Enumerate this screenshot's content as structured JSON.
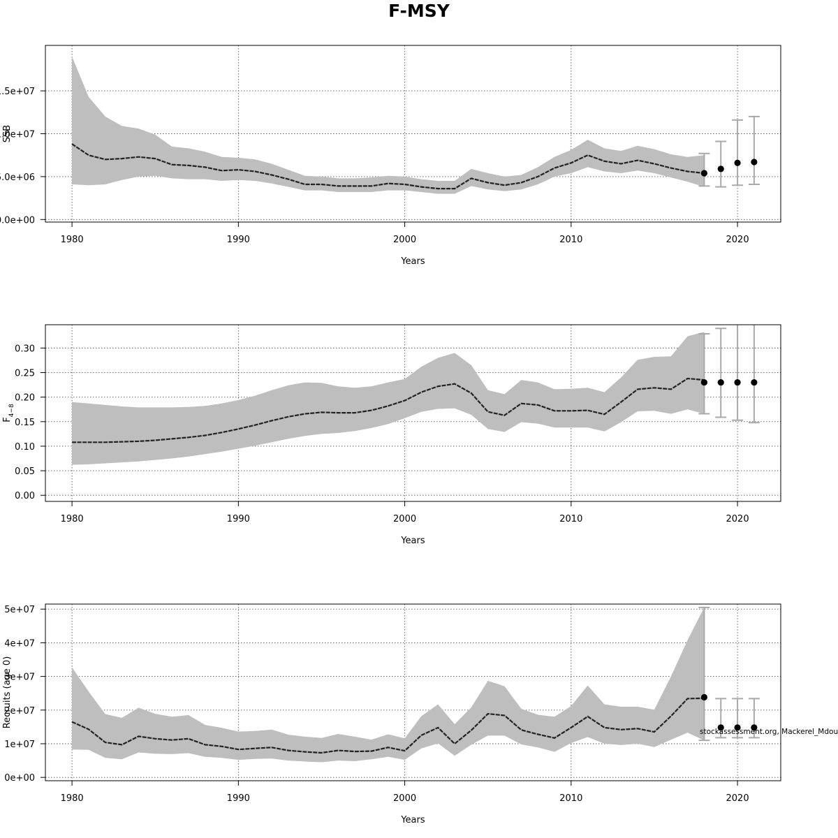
{
  "title": "F-MSY",
  "source_note": "stockassessment.org, Mackerel_Mdouble",
  "colors": {
    "band": "#bebebe",
    "line": "#222222",
    "errorbar": "#a9a9a9",
    "point": "#000000",
    "grid": "#555555"
  },
  "chart_data": [
    {
      "type": "line",
      "title": "",
      "xlabel": "Years",
      "ylabel": "SSB",
      "grid": true,
      "xlim": [
        1978.4,
        2022.6
      ],
      "ylim": [
        -300000,
        20300000
      ],
      "xticks": [
        1980,
        1990,
        2000,
        2010,
        2020
      ],
      "xtick_labels": [
        "1980",
        "1990",
        "2000",
        "2010",
        "2020"
      ],
      "yticks": [
        0,
        5000000,
        10000000,
        15000000
      ],
      "ytick_labels": [
        "0.0e+00",
        "5.0e+06",
        "1.0e+07",
        "1.5e+07"
      ],
      "x": [
        1980,
        1981,
        1982,
        1983,
        1984,
        1985,
        1986,
        1987,
        1988,
        1989,
        1990,
        1991,
        1992,
        1993,
        1994,
        1995,
        1996,
        1997,
        1998,
        1999,
        2000,
        2001,
        2002,
        2003,
        2004,
        2005,
        2006,
        2007,
        2008,
        2009,
        2010,
        2011,
        2012,
        2013,
        2014,
        2015,
        2016,
        2017,
        2018
      ],
      "estimate": [
        8800000,
        7500000,
        7000000,
        7100000,
        7300000,
        7100000,
        6400000,
        6300000,
        6100000,
        5700000,
        5800000,
        5600000,
        5200000,
        4700000,
        4100000,
        4100000,
        3900000,
        3900000,
        3900000,
        4200000,
        4100000,
        3800000,
        3600000,
        3600000,
        4800000,
        4300000,
        4000000,
        4300000,
        5000000,
        6000000,
        6600000,
        7500000,
        6800000,
        6500000,
        6900000,
        6500000,
        6000000,
        5600000,
        5400000
      ],
      "upper": [
        19000000,
        14300000,
        12000000,
        10900000,
        10600000,
        9900000,
        8500000,
        8300000,
        7900000,
        7300000,
        7200000,
        7000000,
        6500000,
        5800000,
        5100000,
        5000000,
        4800000,
        4800000,
        4900000,
        5100000,
        5000000,
        4700000,
        4500000,
        4500000,
        5900000,
        5400000,
        5000000,
        5200000,
        6100000,
        7300000,
        8100000,
        9300000,
        8300000,
        8000000,
        8600000,
        8200000,
        7600000,
        7300000,
        7500000
      ],
      "lower": [
        4100000,
        4000000,
        4100000,
        4600000,
        5000000,
        5100000,
        4800000,
        4700000,
        4700000,
        4500000,
        4600000,
        4500000,
        4200000,
        3800000,
        3400000,
        3400000,
        3200000,
        3200000,
        3200000,
        3400000,
        3400000,
        3200000,
        3000000,
        3000000,
        3900000,
        3500000,
        3300000,
        3500000,
        4100000,
        5000000,
        5400000,
        6100000,
        5600000,
        5400000,
        5700000,
        5400000,
        4900000,
        4400000,
        3800000
      ],
      "forecast": [
        {
          "x": 2018,
          "value": 5400000,
          "low": 3900000,
          "high": 7700000
        },
        {
          "x": 2019,
          "value": 5900000,
          "low": 3800000,
          "high": 9100000
        },
        {
          "x": 2020,
          "value": 6600000,
          "low": 4000000,
          "high": 11600000
        },
        {
          "x": 2021,
          "value": 6700000,
          "low": 4100000,
          "high": 12000000
        }
      ]
    },
    {
      "type": "line",
      "title": "",
      "xlabel": "Years",
      "ylabel": "F",
      "ylabel_subscript": "4−8",
      "grid": true,
      "xlim": [
        1978.4,
        2022.6
      ],
      "ylim": [
        -0.0125,
        0.3475
      ],
      "xticks": [
        1980,
        1990,
        2000,
        2010,
        2020
      ],
      "xtick_labels": [
        "1980",
        "1990",
        "2000",
        "2010",
        "2020"
      ],
      "yticks": [
        0,
        0.05,
        0.1,
        0.15,
        0.2,
        0.25,
        0.3
      ],
      "ytick_labels": [
        "0.00",
        "0.05",
        "0.10",
        "0.15",
        "0.20",
        "0.25",
        "0.30"
      ],
      "x": [
        1980,
        1981,
        1982,
        1983,
        1984,
        1985,
        1986,
        1987,
        1988,
        1989,
        1990,
        1991,
        1992,
        1993,
        1994,
        1995,
        1996,
        1997,
        1998,
        1999,
        2000,
        2001,
        2002,
        2003,
        2004,
        2005,
        2006,
        2007,
        2008,
        2009,
        2010,
        2011,
        2012,
        2013,
        2014,
        2015,
        2016,
        2017,
        2018
      ],
      "estimate": [
        0.108,
        0.108,
        0.108,
        0.109,
        0.11,
        0.112,
        0.115,
        0.118,
        0.122,
        0.128,
        0.135,
        0.143,
        0.152,
        0.16,
        0.166,
        0.169,
        0.168,
        0.168,
        0.173,
        0.182,
        0.193,
        0.21,
        0.222,
        0.227,
        0.208,
        0.17,
        0.163,
        0.187,
        0.184,
        0.172,
        0.172,
        0.173,
        0.165,
        0.19,
        0.216,
        0.219,
        0.216,
        0.238,
        0.235
      ],
      "upper": [
        0.19,
        0.187,
        0.184,
        0.181,
        0.179,
        0.179,
        0.179,
        0.18,
        0.182,
        0.187,
        0.194,
        0.203,
        0.214,
        0.224,
        0.23,
        0.229,
        0.222,
        0.219,
        0.222,
        0.23,
        0.237,
        0.262,
        0.28,
        0.29,
        0.265,
        0.214,
        0.206,
        0.235,
        0.23,
        0.216,
        0.217,
        0.219,
        0.21,
        0.24,
        0.276,
        0.282,
        0.283,
        0.324,
        0.333
      ],
      "lower": [
        0.062,
        0.063,
        0.065,
        0.067,
        0.069,
        0.072,
        0.075,
        0.079,
        0.084,
        0.089,
        0.095,
        0.101,
        0.108,
        0.115,
        0.121,
        0.125,
        0.127,
        0.131,
        0.137,
        0.145,
        0.157,
        0.17,
        0.176,
        0.177,
        0.164,
        0.135,
        0.129,
        0.149,
        0.146,
        0.138,
        0.138,
        0.138,
        0.13,
        0.149,
        0.171,
        0.172,
        0.166,
        0.175,
        0.166
      ],
      "forecast": [
        {
          "x": 2018,
          "value": 0.23,
          "low": 0.166,
          "high": 0.329
        },
        {
          "x": 2019,
          "value": 0.23,
          "low": 0.159,
          "high": 0.34
        },
        {
          "x": 2020,
          "value": 0.23,
          "low": 0.153,
          "high": 0.358
        },
        {
          "x": 2021,
          "value": 0.23,
          "low": 0.148,
          "high": 0.36
        }
      ]
    },
    {
      "type": "line",
      "title": "",
      "xlabel": "Years",
      "ylabel": "Recruits (age 0)",
      "grid": true,
      "xlim": [
        1978.4,
        2022.6
      ],
      "ylim": [
        -1000000,
        51500000
      ],
      "xticks": [
        1980,
        1990,
        2000,
        2010,
        2020
      ],
      "xtick_labels": [
        "1980",
        "1990",
        "2000",
        "2010",
        "2020"
      ],
      "yticks": [
        0,
        10000000,
        20000000,
        30000000,
        40000000,
        50000000
      ],
      "ytick_labels": [
        "0e+00",
        "1e+07",
        "2e+07",
        "3e+07",
        "4e+07",
        "5e+07"
      ],
      "x": [
        1980,
        1981,
        1982,
        1983,
        1984,
        1985,
        1986,
        1987,
        1988,
        1989,
        1990,
        1991,
        1992,
        1993,
        1994,
        1995,
        1996,
        1997,
        1998,
        1999,
        2000,
        2001,
        2002,
        2003,
        2004,
        2005,
        2006,
        2007,
        2008,
        2009,
        2010,
        2011,
        2012,
        2013,
        2014,
        2015,
        2016,
        2017,
        2018
      ],
      "estimate": [
        16500000,
        14300000,
        10400000,
        9700000,
        12200000,
        11500000,
        11100000,
        11500000,
        9700000,
        9200000,
        8300000,
        8600000,
        8900000,
        8000000,
        7600000,
        7300000,
        8000000,
        7700000,
        7800000,
        8900000,
        7900000,
        12500000,
        14800000,
        10000000,
        14000000,
        18900000,
        18400000,
        14100000,
        12800000,
        11700000,
        14800000,
        18100000,
        14800000,
        14200000,
        14500000,
        13500000,
        18200000,
        23400000,
        23500000
      ],
      "upper": [
        32700000,
        25500000,
        18800000,
        17700000,
        20700000,
        18900000,
        18000000,
        18500000,
        15600000,
        14700000,
        13600000,
        13800000,
        14200000,
        12700000,
        12100000,
        11700000,
        12900000,
        12100000,
        11200000,
        12800000,
        11600000,
        18200000,
        21700000,
        15800000,
        20800000,
        28700000,
        27100000,
        20400000,
        18600000,
        18000000,
        21200000,
        27300000,
        21700000,
        21000000,
        21000000,
        20100000,
        30000000,
        40800000,
        50500000
      ],
      "lower": [
        8300000,
        8200000,
        5800000,
        5400000,
        7400000,
        7000000,
        6900000,
        7200000,
        6100000,
        5800000,
        5200000,
        5500000,
        5600000,
        5000000,
        4700000,
        4500000,
        5000000,
        4800000,
        5400000,
        6100000,
        5200000,
        8600000,
        10100000,
        6400000,
        9700000,
        12400000,
        12400000,
        9800000,
        8900000,
        7600000,
        10200000,
        12000000,
        10000000,
        9600000,
        10000000,
        9000000,
        11200000,
        13300000,
        11000000
      ],
      "forecast": [
        {
          "x": 2018,
          "value": 23800000,
          "low": 11000000,
          "high": 50500000
        },
        {
          "x": 2019,
          "value": 14800000,
          "low": 11800000,
          "high": 23400000
        },
        {
          "x": 2020,
          "value": 14800000,
          "low": 11800000,
          "high": 23400000
        },
        {
          "x": 2021,
          "value": 14800000,
          "low": 11800000,
          "high": 23400000
        }
      ]
    }
  ]
}
